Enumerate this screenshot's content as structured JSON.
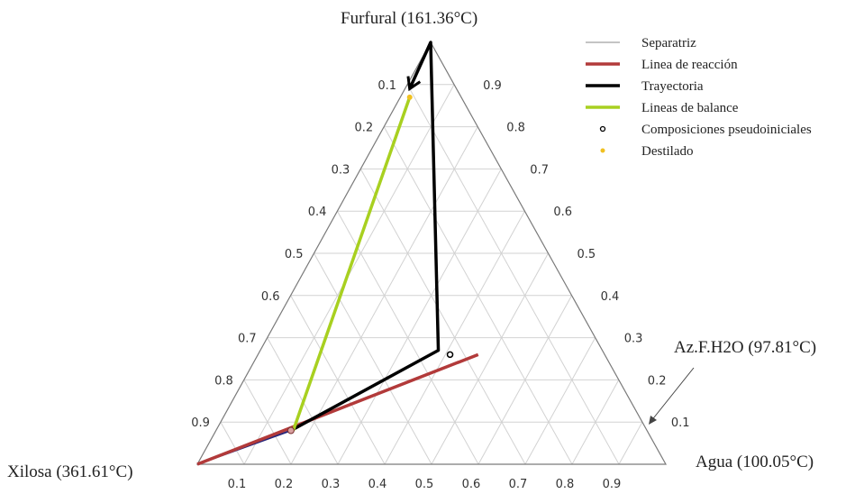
{
  "chart_data": {
    "type": "ternary",
    "vertices": {
      "top": "Furfural (161.36°C)",
      "bottom_left": "Xilosa (361.61°C)",
      "bottom_right": "Agua (100.05°C)"
    },
    "point_labels": [
      {
        "text": "Az.F.H2O (97.81°C)"
      }
    ],
    "ticks": {
      "left": [
        "0.1",
        "0.2",
        "0.3",
        "0.4",
        "0.5",
        "0.6",
        "0.7",
        "0.8",
        "0.9"
      ],
      "right": [
        "0.9",
        "0.8",
        "0.7",
        "0.6",
        "0.5",
        "0.4",
        "0.3",
        "0.2",
        "0.1"
      ],
      "bottom": [
        "0.1",
        "0.2",
        "0.3",
        "0.4",
        "0.5",
        "0.6",
        "0.7",
        "0.8",
        "0.9"
      ]
    },
    "grid": true,
    "legend_position": "top-right",
    "series": [
      {
        "name": "Separatriz",
        "kind": "line",
        "color": "#26267a",
        "points": [
          [
            0,
            0
          ],
          [
            0.16,
            0.08
          ]
        ]
      },
      {
        "name": "Linea de reacción",
        "kind": "line",
        "color": "#b23a3a",
        "points": [
          [
            0,
            0
          ],
          [
            0.47,
            0.26
          ]
        ]
      },
      {
        "name": "Trayectoria",
        "kind": "line",
        "color": "#000000",
        "points": [
          [
            0.16,
            0.08
          ],
          [
            0.38,
            0.27
          ],
          [
            0,
            1
          ],
          [
            0.01,
            0.89
          ]
        ]
      },
      {
        "name": "Lineas de balance",
        "kind": "line",
        "color": "#a8d020",
        "points": [
          [
            0.165,
            0.08
          ],
          [
            0.02,
            0.87
          ]
        ]
      },
      {
        "name": "Composiciones pseudoiniciales",
        "kind": "marker",
        "color": "#000000",
        "points": [
          [
            0.41,
            0.26
          ]
        ]
      },
      {
        "name": "Destilado",
        "kind": "marker",
        "color": "#f0c020",
        "points": [
          [
            0.02,
            0.87
          ]
        ]
      }
    ]
  }
}
